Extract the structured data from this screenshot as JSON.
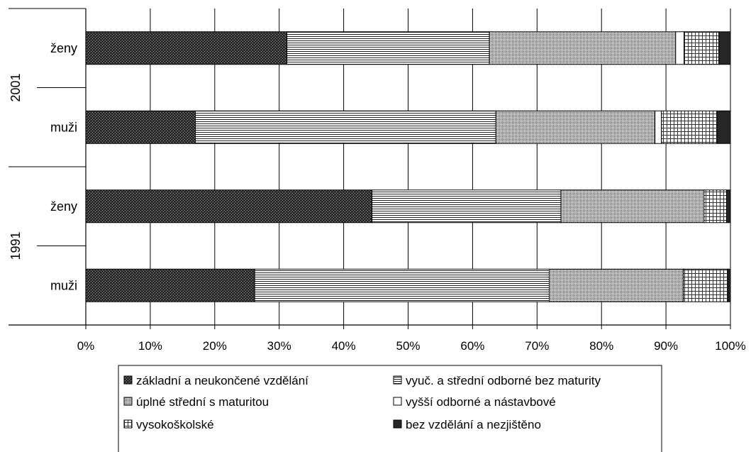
{
  "chart_data": {
    "type": "bar",
    "orientation": "horizontal",
    "stacked": "percent",
    "xlim": [
      0,
      100
    ],
    "x_ticks": [
      "0%",
      "10%",
      "20%",
      "30%",
      "40%",
      "50%",
      "60%",
      "70%",
      "80%",
      "90%",
      "100%"
    ],
    "grid": "vertical",
    "legend_position": "bottom",
    "groups": [
      {
        "label": "2001",
        "categories": [
          "ženy",
          "muži"
        ]
      },
      {
        "label": "1991",
        "categories": [
          "ženy",
          "muži"
        ]
      }
    ],
    "categories": [
      "2001 ženy",
      "2001 muži",
      "1991 ženy",
      "1991 muži"
    ],
    "series": [
      {
        "name": "základní a neukončené vzdělání",
        "pattern": "dots",
        "values": [
          31.2,
          17.0,
          44.4,
          26.2
        ]
      },
      {
        "name": "vyuč. a střední odborné bez maturity",
        "pattern": "horizontal-lines",
        "values": [
          31.4,
          46.6,
          29.3,
          45.7
        ]
      },
      {
        "name": "úplné střední s maturitou",
        "pattern": "crosshatch",
        "values": [
          28.9,
          24.7,
          22.2,
          20.8
        ]
      },
      {
        "name": "vyšší odborné a nástavbové",
        "pattern": "blank",
        "values": [
          1.3,
          1.0,
          0.0,
          0.0
        ]
      },
      {
        "name": "vysokoškolské",
        "pattern": "grid",
        "values": [
          5.4,
          8.6,
          3.5,
          6.9
        ]
      },
      {
        "name": "bez vzdělání a nezjištěno",
        "pattern": "solid-dark",
        "values": [
          1.8,
          2.1,
          0.6,
          0.4
        ]
      }
    ]
  }
}
